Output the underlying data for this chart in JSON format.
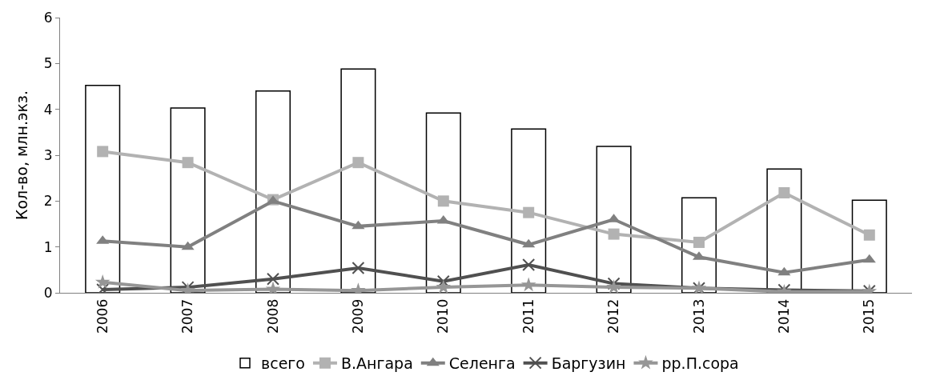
{
  "chart_data": {
    "type": "bar",
    "ylabel": "Кол-во, млн.экз.",
    "categories": [
      "2006",
      "2007",
      "2008",
      "2009",
      "2010",
      "2011",
      "2012",
      "2013",
      "2014",
      "2015"
    ],
    "series": [
      {
        "name": "всего",
        "color": "#ffffff",
        "values": [
          4.52,
          4.03,
          4.4,
          4.88,
          3.92,
          3.57,
          3.19,
          2.07,
          2.7,
          2.02
        ]
      },
      {
        "name": "В.Ангара",
        "type": "line",
        "marker": "square",
        "color": "#b2b2b2",
        "values": [
          3.08,
          2.84,
          2.03,
          2.84,
          2.0,
          1.75,
          1.28,
          1.1,
          2.18,
          1.26
        ]
      },
      {
        "name": "Селенга",
        "type": "line",
        "marker": "triangle",
        "color": "#808080",
        "values": [
          1.13,
          1.0,
          2.0,
          1.45,
          1.57,
          1.05,
          1.6,
          0.78,
          0.44,
          0.72
        ]
      },
      {
        "name": "Баргузин",
        "type": "line",
        "marker": "cross",
        "color": "#505050",
        "values": [
          0.07,
          0.12,
          0.3,
          0.54,
          0.25,
          0.61,
          0.2,
          0.1,
          0.06,
          0.04
        ]
      },
      {
        "name": "рр.П.сора",
        "type": "line",
        "marker": "star",
        "color": "#969696",
        "values": [
          0.23,
          0.05,
          0.08,
          0.05,
          0.12,
          0.17,
          0.12,
          0.1,
          0.02,
          0.03
        ]
      }
    ],
    "ylim": [
      0,
      6
    ],
    "yticks": [
      0,
      1,
      2,
      3,
      4,
      5,
      6
    ],
    "grid": false,
    "legend": "bottom"
  }
}
